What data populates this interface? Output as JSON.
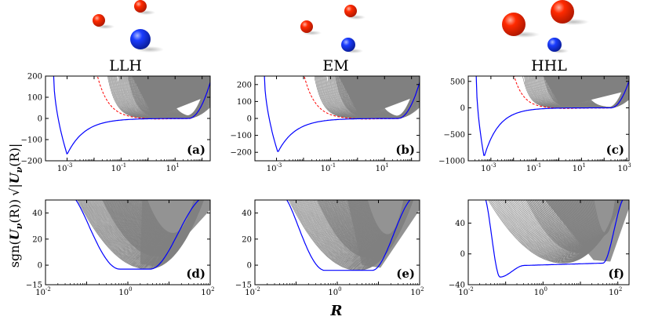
{
  "figure": {
    "xlabel": "R",
    "ylabel": "sgn(U_ν(R)) √|U_ν(R)|",
    "ylabel_sgn": "sgn(",
    "ylabel_U": "U",
    "ylabel_nu": "ν",
    "ylabel_R": "(R)",
    "ylabel_close": ")",
    "columns": [
      "LLH",
      "EM",
      "HHL"
    ]
  },
  "colors": {
    "red_atom": "#ff2a00",
    "blue_atom": "#1a3cff",
    "gray_fill": "#808080",
    "blue_curve": "#0000ff",
    "red_curve": "#ff0000"
  },
  "chart_data": [
    {
      "id": "a",
      "label": "(a)",
      "column": "LLH",
      "type": "line",
      "xscale": "log",
      "xlim_exp": [
        -3.8,
        2.3
      ],
      "ylim": [
        -200,
        200
      ],
      "yticks": [
        "200",
        "100",
        "0",
        "−100",
        "−200"
      ],
      "ytick_values": [
        200,
        100,
        0,
        -100,
        -200
      ],
      "xtick_exps": [
        -3,
        -1,
        1
      ],
      "xtick_labels": [
        "10",
        "10",
        "10"
      ],
      "xtick_sups": [
        "-3",
        "-1",
        "1"
      ],
      "min_R_exp": -3.0,
      "min_value": -170,
      "rise_exp": -3.5,
      "gray_start_exp": -1.5,
      "series": [
        {
          "name": "ground state (blue)"
        },
        {
          "name": "first excited (red dashed)"
        }
      ]
    },
    {
      "id": "b",
      "label": "(b)",
      "column": "EM",
      "type": "line",
      "xscale": "log",
      "xlim_exp": [
        -3.8,
        2.3
      ],
      "ylim": [
        -250,
        250
      ],
      "yticks": [
        "200",
        "100",
        "0",
        "−100",
        "−200"
      ],
      "ytick_values": [
        200,
        100,
        0,
        -100,
        -200
      ],
      "xtick_exps": [
        -3,
        -1,
        1
      ],
      "xtick_labels": [
        "10",
        "10",
        "10"
      ],
      "xtick_sups": [
        "-3",
        "-1",
        "1"
      ],
      "min_R_exp": -2.95,
      "min_value": -200,
      "rise_exp": -3.45,
      "gray_start_exp": -1.6,
      "series": [
        {
          "name": "ground state (blue)"
        },
        {
          "name": "first excited (red dashed)"
        }
      ]
    },
    {
      "id": "c",
      "label": "(c)",
      "column": "HHL",
      "type": "line",
      "xscale": "log",
      "xlim_exp": [
        -4.0,
        3.1
      ],
      "ylim": [
        -1000,
        600
      ],
      "yticks": [
        "500",
        "0",
        "−500",
        "−1000"
      ],
      "ytick_values": [
        500,
        0,
        -500,
        -1000
      ],
      "xtick_exps": [
        -3,
        -1,
        1,
        3
      ],
      "xtick_labels": [
        "10",
        "10",
        "10",
        "10"
      ],
      "xtick_sups": [
        "-3",
        "-1",
        "1",
        "3"
      ],
      "min_R_exp": -3.3,
      "min_value": -930,
      "rise_exp": -3.65,
      "gray_start_exp": -1.6,
      "series": [
        {
          "name": "ground state (blue)"
        },
        {
          "name": "first excited (red dashed)"
        }
      ]
    },
    {
      "id": "d",
      "label": "(d)",
      "column": "LLH",
      "type": "line",
      "xscale": "log",
      "xlim_exp": [
        -2.0,
        2.0
      ],
      "ylim": [
        -15,
        50
      ],
      "yticks": [
        "40",
        "20",
        "0",
        "−15"
      ],
      "ytick_values": [
        40,
        20,
        0,
        -15
      ],
      "xtick_exps": [
        -2,
        0,
        2
      ],
      "xtick_labels": [
        "10",
        "10",
        "10"
      ],
      "xtick_sups": [
        "-2",
        "0",
        "2"
      ],
      "left_exp": -1.35,
      "plateau_value": -3,
      "plateau_exps": [
        -0.2,
        0.55
      ],
      "right_exp": 1.9,
      "series": [
        {
          "name": "lowest adiabatic potential (blue)"
        }
      ]
    },
    {
      "id": "e",
      "label": "(e)",
      "column": "EM",
      "type": "line",
      "xscale": "log",
      "xlim_exp": [
        -2.0,
        2.0
      ],
      "ylim": [
        -15,
        50
      ],
      "yticks": [
        "40",
        "20",
        "0",
        "−15"
      ],
      "ytick_values": [
        40,
        20,
        0,
        -15
      ],
      "xtick_exps": [
        -2,
        0,
        2
      ],
      "xtick_labels": [
        "10",
        "10",
        "10"
      ],
      "xtick_sups": [
        "-2",
        "0",
        "2"
      ],
      "left_exp": -1.3,
      "plateau_value": -4,
      "plateau_exps": [
        -0.3,
        0.85
      ],
      "right_exp": 1.9,
      "series": [
        {
          "name": "lowest adiabatic potential (blue)"
        }
      ]
    },
    {
      "id": "f",
      "label": "(f)",
      "column": "HHL",
      "type": "line",
      "xscale": "log",
      "xlim_exp": [
        -2.0,
        2.3
      ],
      "ylim": [
        -40,
        70
      ],
      "yticks": [
        "40",
        "0",
        "−40"
      ],
      "ytick_values": [
        40,
        0,
        -40
      ],
      "xtick_exps": [
        -2,
        0,
        2
      ],
      "xtick_labels": [
        "10",
        "10",
        "10"
      ],
      "xtick_sups": [
        "-2",
        "0",
        "2"
      ],
      "left_exp": -1.6,
      "min_value": -30,
      "min_exp": -1.15,
      "plateau_value": -12,
      "plateau_exps": [
        -0.5,
        1.6
      ],
      "right_exp": 2.2,
      "series": [
        {
          "name": "lowest adiabatic potential (blue)"
        }
      ]
    }
  ]
}
